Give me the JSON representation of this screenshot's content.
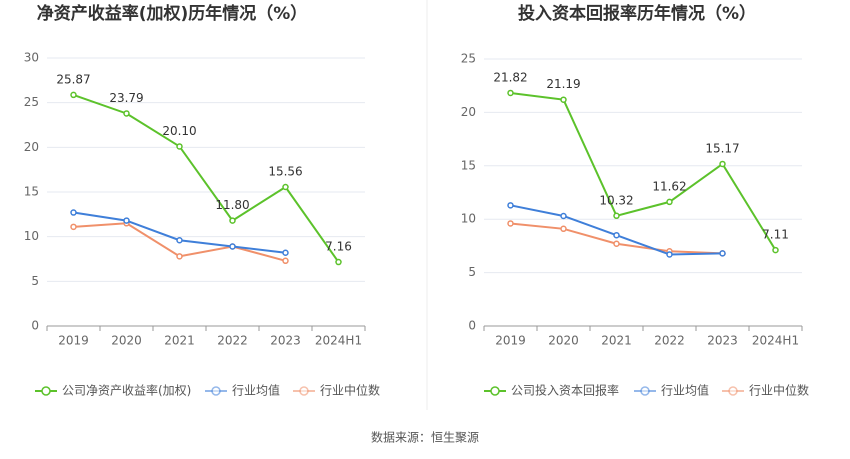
{
  "chart_data": [
    {
      "type": "line",
      "title": "净资产收益率(加权)历年情况（%）",
      "categories": [
        "2019",
        "2020",
        "2021",
        "2022",
        "2023",
        "2024H1"
      ],
      "ylim": [
        0,
        30
      ],
      "yticks": [
        0,
        5,
        10,
        15,
        20,
        25,
        30
      ],
      "grid": true,
      "series": [
        {
          "name": "公司净资产收益率(加权)",
          "color": "#5cc22b",
          "values": [
            25.87,
            23.79,
            20.1,
            11.8,
            15.56,
            7.16
          ],
          "value_labels": [
            "25.87",
            "23.79",
            "20.10",
            "11.80",
            "15.56",
            "7.16"
          ]
        },
        {
          "name": "行业均值",
          "color": "#3f7fd9",
          "values": [
            12.7,
            11.8,
            9.6,
            8.9,
            8.2,
            null
          ]
        },
        {
          "name": "行业中位数",
          "color": "#f0906a",
          "values": [
            11.1,
            11.5,
            7.8,
            8.9,
            7.3,
            null
          ]
        }
      ]
    },
    {
      "type": "line",
      "title": "投入资本回报率历年情况（%）",
      "categories": [
        "2019",
        "2020",
        "2021",
        "2022",
        "2023",
        "2024H1"
      ],
      "ylim": [
        0,
        25
      ],
      "yticks": [
        0,
        5,
        10,
        15,
        20,
        25
      ],
      "grid": true,
      "series": [
        {
          "name": "公司投入资本回报率",
          "color": "#5cc22b",
          "values": [
            21.82,
            21.19,
            10.32,
            11.62,
            15.17,
            7.11
          ],
          "value_labels": [
            "21.82",
            "21.19",
            "10.32",
            "11.62",
            "15.17",
            "7.11"
          ]
        },
        {
          "name": "行业均值",
          "color": "#3f7fd9",
          "values": [
            11.3,
            10.3,
            8.5,
            6.7,
            6.8,
            null
          ]
        },
        {
          "name": "行业中位数",
          "color": "#f0906a",
          "values": [
            9.6,
            9.1,
            7.7,
            7.0,
            6.8,
            null
          ]
        }
      ]
    }
  ],
  "source": "数据来源：恒生聚源"
}
